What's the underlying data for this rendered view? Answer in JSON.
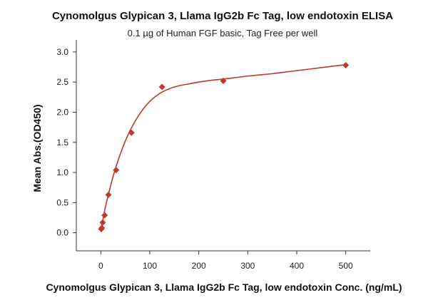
{
  "chart_data": {
    "type": "scatter",
    "title": "Cynomolgus Glypican 3, Llama IgG2b Fc Tag, low endotoxin ELISA",
    "subtitle": "0.1 µg of Human FGF basic, Tag Free per well",
    "xlabel": "Cynomolgus Glypican 3, Llama IgG2b Fc Tag, low endotoxin Conc. (ng/mL)",
    "ylabel": "Mean Abs.(OD450)",
    "xlim": [
      -50,
      550
    ],
    "ylim": [
      -0.3,
      3.2
    ],
    "xticks": [
      0,
      100,
      200,
      300,
      400,
      500
    ],
    "yticks": [
      0.0,
      0.5,
      1.0,
      1.5,
      2.0,
      2.5,
      3.0
    ],
    "xtick_labels": [
      "0",
      "100",
      "200",
      "300",
      "400",
      "500"
    ],
    "ytick_labels": [
      "0.0",
      "0.5",
      "1.0",
      "1.5",
      "2.0",
      "2.5",
      "3.0"
    ],
    "grid": false,
    "series": [
      {
        "color": "#c0392b",
        "marker": "diamond",
        "x": [
          0.98,
          1.95,
          3.9,
          7.8,
          15.6,
          31.25,
          62.5,
          125,
          250,
          500
        ],
        "y": [
          0.06,
          0.08,
          0.17,
          0.29,
          0.63,
          1.04,
          1.66,
          2.42,
          2.52,
          2.78
        ]
      }
    ],
    "fit_curve": {
      "color": "#c0392b",
      "x": [
        0,
        10,
        20,
        30,
        45,
        60,
        80,
        100,
        120,
        140,
        160,
        180,
        200,
        225,
        250,
        300,
        350,
        400,
        450,
        500
      ],
      "y": [
        0.04,
        0.45,
        0.78,
        1.07,
        1.42,
        1.7,
        1.98,
        2.18,
        2.31,
        2.39,
        2.44,
        2.47,
        2.5,
        2.53,
        2.55,
        2.6,
        2.64,
        2.69,
        2.74,
        2.79
      ]
    }
  }
}
